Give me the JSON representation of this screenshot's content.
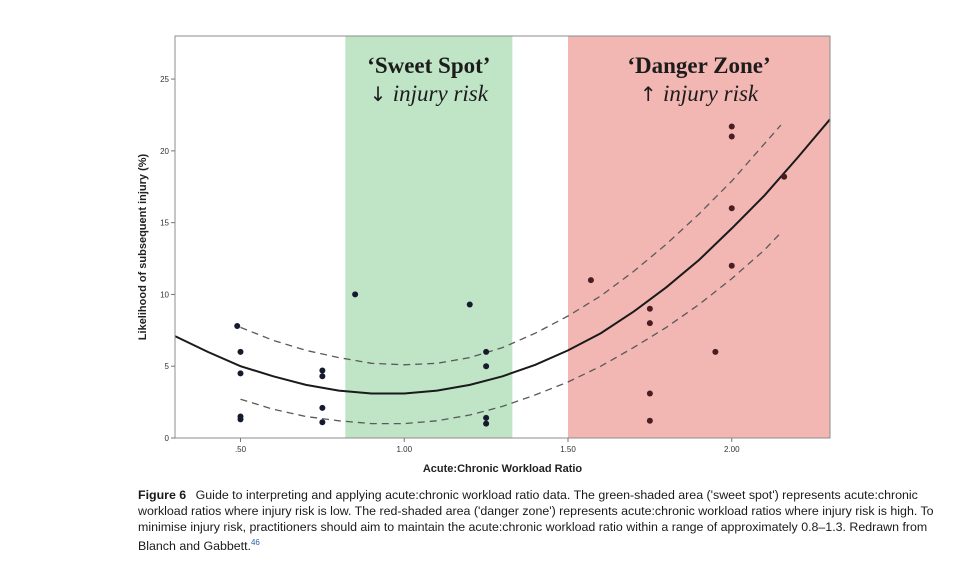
{
  "chart_data": {
    "type": "scatter",
    "xlabel": "Acute:Chronic Workload Ratio",
    "ylabel": "Likelihood of subsequent injury (%)",
    "xlim": [
      0.3,
      2.3
    ],
    "ylim": [
      0,
      28
    ],
    "x_ticks": [
      0.5,
      1.0,
      1.5,
      2.0
    ],
    "x_tick_labels": [
      ".50",
      "1.00",
      "1.50",
      "2.00"
    ],
    "y_ticks": [
      0,
      5,
      10,
      15,
      20,
      25
    ],
    "y_tick_labels": [
      "0",
      "5",
      "10",
      "15",
      "20",
      "25"
    ],
    "grid": false,
    "zones": [
      {
        "name": "sweet-spot",
        "x_range": [
          0.82,
          1.33
        ],
        "color": "#bfe4c6",
        "title": "‘Sweet Spot’",
        "arrow": "↓",
        "subtitle": "injury risk"
      },
      {
        "name": "danger-zone",
        "x_range": [
          1.5,
          2.3
        ],
        "color": "#f2b6b3",
        "title": "‘Danger Zone’",
        "arrow": "↑",
        "subtitle": "injury risk"
      }
    ],
    "points": [
      {
        "x": 0.49,
        "y": 7.8
      },
      {
        "x": 0.5,
        "y": 6.0
      },
      {
        "x": 0.5,
        "y": 4.5
      },
      {
        "x": 0.5,
        "y": 1.5
      },
      {
        "x": 0.5,
        "y": 1.3
      },
      {
        "x": 0.75,
        "y": 4.7
      },
      {
        "x": 0.75,
        "y": 4.3
      },
      {
        "x": 0.75,
        "y": 2.1
      },
      {
        "x": 0.75,
        "y": 1.1
      },
      {
        "x": 0.85,
        "y": 10.0
      },
      {
        "x": 1.2,
        "y": 9.3
      },
      {
        "x": 1.25,
        "y": 6.0
      },
      {
        "x": 1.25,
        "y": 5.0
      },
      {
        "x": 1.25,
        "y": 1.4
      },
      {
        "x": 1.25,
        "y": 1.0
      },
      {
        "x": 1.57,
        "y": 11.0
      },
      {
        "x": 1.75,
        "y": 9.0
      },
      {
        "x": 1.75,
        "y": 8.0
      },
      {
        "x": 1.75,
        "y": 3.1
      },
      {
        "x": 1.75,
        "y": 1.2
      },
      {
        "x": 1.95,
        "y": 6.0
      },
      {
        "x": 2.0,
        "y": 21.7
      },
      {
        "x": 2.0,
        "y": 21.0
      },
      {
        "x": 2.0,
        "y": 16.0
      },
      {
        "x": 2.0,
        "y": 12.0
      },
      {
        "x": 2.16,
        "y": 18.2
      }
    ],
    "fit_curve": [
      [
        0.3,
        7.1
      ],
      [
        0.4,
        6.0
      ],
      [
        0.5,
        5.0
      ],
      [
        0.6,
        4.3
      ],
      [
        0.7,
        3.7
      ],
      [
        0.8,
        3.3
      ],
      [
        0.9,
        3.1
      ],
      [
        1.0,
        3.1
      ],
      [
        1.1,
        3.3
      ],
      [
        1.2,
        3.7
      ],
      [
        1.3,
        4.3
      ],
      [
        1.4,
        5.1
      ],
      [
        1.5,
        6.1
      ],
      [
        1.6,
        7.3
      ],
      [
        1.7,
        8.8
      ],
      [
        1.8,
        10.5
      ],
      [
        1.9,
        12.4
      ],
      [
        2.0,
        14.6
      ],
      [
        2.1,
        16.9
      ],
      [
        2.2,
        19.5
      ],
      [
        2.3,
        22.2
      ]
    ],
    "ci_upper": [
      [
        0.5,
        7.7
      ],
      [
        0.6,
        6.8
      ],
      [
        0.7,
        6.1
      ],
      [
        0.8,
        5.6
      ],
      [
        0.9,
        5.2
      ],
      [
        1.0,
        5.1
      ],
      [
        1.1,
        5.2
      ],
      [
        1.2,
        5.6
      ],
      [
        1.3,
        6.3
      ],
      [
        1.4,
        7.3
      ],
      [
        1.5,
        8.5
      ],
      [
        1.6,
        9.9
      ],
      [
        1.7,
        11.6
      ],
      [
        1.8,
        13.5
      ],
      [
        1.9,
        15.6
      ],
      [
        2.0,
        17.9
      ],
      [
        2.1,
        20.5
      ],
      [
        2.15,
        21.8
      ]
    ],
    "ci_lower": [
      [
        0.5,
        2.7
      ],
      [
        0.6,
        2.0
      ],
      [
        0.7,
        1.5
      ],
      [
        0.8,
        1.2
      ],
      [
        0.9,
        1.0
      ],
      [
        1.0,
        1.0
      ],
      [
        1.1,
        1.2
      ],
      [
        1.2,
        1.6
      ],
      [
        1.3,
        2.2
      ],
      [
        1.4,
        3.0
      ],
      [
        1.5,
        3.9
      ],
      [
        1.6,
        5.0
      ],
      [
        1.7,
        6.3
      ],
      [
        1.8,
        7.7
      ],
      [
        1.9,
        9.3
      ],
      [
        2.0,
        11.1
      ],
      [
        2.1,
        13.1
      ],
      [
        2.15,
        14.3
      ]
    ]
  },
  "caption": {
    "figure_label": "Figure 6",
    "text": "Guide to interpreting and applying acute:chronic workload ratio data. The green-shaded area ('sweet spot') represents acute:chronic workload ratios where injury risk is low. The red-shaded area ('danger zone') represents acute:chronic workload ratios where injury risk is high. To minimise injury risk, practitioners should aim to maintain the acute:chronic workload ratio within a range of approximately 0.8–1.3. Redrawn from Blanch and Gabbett.",
    "reference": "46"
  }
}
